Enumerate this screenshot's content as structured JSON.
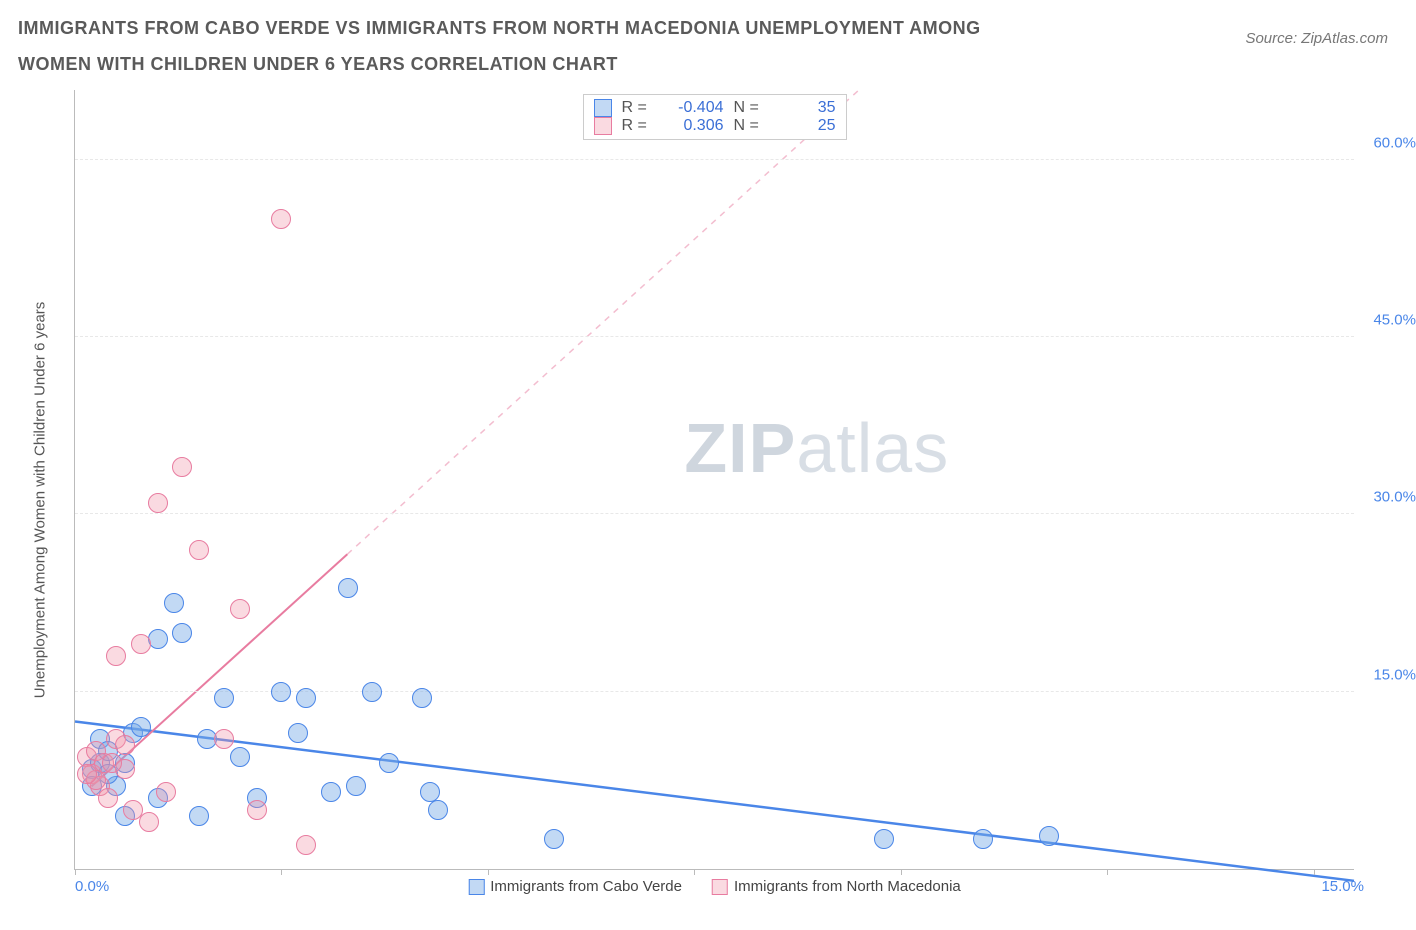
{
  "title": "IMMIGRANTS FROM CABO VERDE VS IMMIGRANTS FROM NORTH MACEDONIA UNEMPLOYMENT AMONG WOMEN WITH CHILDREN UNDER 6 YEARS CORRELATION CHART",
  "source": "Source: ZipAtlas.com",
  "ylabel": "Unemployment Among Women with Children Under 6 years",
  "watermark_a": "ZIP",
  "watermark_b": "atlas",
  "chart": {
    "type": "scatter",
    "xlim": [
      0,
      15.5
    ],
    "ylim": [
      0,
      66
    ],
    "ytick_values": [
      15.0,
      30.0,
      45.0,
      60.0
    ],
    "ytick_labels": [
      "15.0%",
      "30.0%",
      "45.0%",
      "60.0%"
    ],
    "xtick_values": [
      0.0,
      2.5,
      5.0,
      7.5,
      10.0,
      12.5,
      15.0
    ],
    "xtick_label_left": "0.0%",
    "xtick_label_right": "15.0%",
    "background_color": "#ffffff",
    "grid_color": "#e8e8e8",
    "axis_color": "#bbbbbb",
    "series": [
      {
        "name": "Immigrants from Cabo Verde",
        "color": "#4a86e8",
        "fill": "rgba(120,170,230,0.45)",
        "marker_size": 20,
        "R": -0.404,
        "N": 35,
        "trend": {
          "x1": 0,
          "y1": 12.5,
          "x2": 15.5,
          "y2": -1.0,
          "dash": false,
          "width": 2.5
        },
        "points": [
          [
            0.2,
            8.5
          ],
          [
            0.3,
            9.0
          ],
          [
            0.3,
            11.0
          ],
          [
            0.4,
            10.0
          ],
          [
            0.5,
            7.0
          ],
          [
            0.6,
            9.0
          ],
          [
            0.6,
            4.5
          ],
          [
            0.7,
            11.5
          ],
          [
            1.0,
            6.0
          ],
          [
            1.0,
            19.5
          ],
          [
            1.2,
            22.5
          ],
          [
            1.3,
            20.0
          ],
          [
            1.5,
            4.5
          ],
          [
            1.6,
            11.0
          ],
          [
            1.8,
            14.5
          ],
          [
            2.0,
            9.5
          ],
          [
            2.2,
            6.0
          ],
          [
            2.5,
            15.0
          ],
          [
            2.7,
            11.5
          ],
          [
            2.8,
            14.5
          ],
          [
            3.1,
            6.5
          ],
          [
            3.3,
            23.8
          ],
          [
            3.4,
            7.0
          ],
          [
            3.6,
            15.0
          ],
          [
            3.8,
            9.0
          ],
          [
            4.2,
            14.5
          ],
          [
            4.3,
            6.5
          ],
          [
            4.4,
            5.0
          ],
          [
            5.8,
            2.5
          ],
          [
            9.8,
            2.5
          ],
          [
            11.0,
            2.5
          ],
          [
            11.8,
            2.8
          ],
          [
            0.2,
            7.0
          ],
          [
            0.4,
            8.0
          ],
          [
            0.8,
            12.0
          ]
        ]
      },
      {
        "name": "Immigrants from North Macedonia",
        "color": "#e87ca0",
        "fill": "rgba(240,150,170,0.35)",
        "marker_size": 20,
        "R": 0.306,
        "N": 25,
        "trend": {
          "x1": 0.2,
          "y1": 7.0,
          "x2": 9.5,
          "y2": 66.0,
          "dash_from_x": 3.3,
          "width": 2
        },
        "points": [
          [
            0.15,
            9.5
          ],
          [
            0.2,
            8.0
          ],
          [
            0.25,
            10.0
          ],
          [
            0.3,
            7.0
          ],
          [
            0.35,
            9.0
          ],
          [
            0.4,
            6.0
          ],
          [
            0.5,
            11.0
          ],
          [
            0.5,
            18.0
          ],
          [
            0.6,
            8.5
          ],
          [
            0.7,
            5.0
          ],
          [
            0.8,
            19.0
          ],
          [
            0.9,
            4.0
          ],
          [
            1.0,
            31.0
          ],
          [
            1.1,
            6.5
          ],
          [
            1.3,
            34.0
          ],
          [
            1.5,
            27.0
          ],
          [
            1.8,
            11.0
          ],
          [
            2.0,
            22.0
          ],
          [
            2.2,
            5.0
          ],
          [
            2.5,
            55.0
          ],
          [
            2.8,
            2.0
          ],
          [
            0.25,
            7.5
          ],
          [
            0.45,
            9.0
          ],
          [
            0.6,
            10.5
          ],
          [
            0.15,
            8.0
          ]
        ]
      }
    ],
    "legend_top": {
      "rows": [
        {
          "swatch": "blue",
          "r_label": "R =",
          "r_val": "-0.404",
          "n_label": "N =",
          "n_val": "35"
        },
        {
          "swatch": "pink",
          "r_label": "R =",
          "r_val": "0.306",
          "n_label": "N =",
          "n_val": "25"
        }
      ]
    },
    "legend_bottom": [
      {
        "swatch": "blue",
        "label": "Immigrants from Cabo Verde"
      },
      {
        "swatch": "pink",
        "label": "Immigrants from North Macedonia"
      }
    ]
  }
}
